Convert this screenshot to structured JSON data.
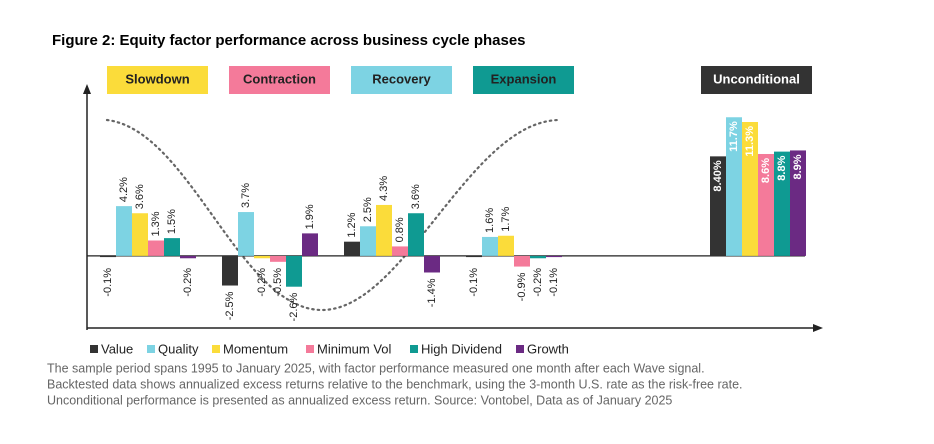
{
  "chart_data": {
    "type": "bar",
    "title": "Figure 2: Equity factor performance across business cycle phases",
    "categories": [
      "Slowdown",
      "Contraction",
      "Recovery",
      "Expansion",
      "Unconditional"
    ],
    "category_colors": [
      "#fbdc3a",
      "#f47a9a",
      "#7dd3e3",
      "#0f9a92",
      "#333333"
    ],
    "series": [
      {
        "name": "Value",
        "color": "#333333",
        "values": [
          -0.1,
          -2.5,
          1.2,
          -0.1,
          8.4
        ],
        "value_labels": [
          "-0.1%",
          "-2.5%",
          "1.2%",
          "-0.1%",
          "8.40%"
        ]
      },
      {
        "name": "Quality",
        "color": "#7dd3e3",
        "values": [
          4.2,
          3.7,
          2.5,
          1.6,
          11.7
        ],
        "value_labels": [
          "4.2%",
          "3.7%",
          "2.5%",
          "1.6%",
          "11.7%"
        ]
      },
      {
        "name": "Momentum",
        "color": "#fbdc3a",
        "values": [
          3.6,
          -0.2,
          4.3,
          1.7,
          11.3
        ],
        "value_labels": [
          "3.6%",
          "-0.2%",
          "4.3%",
          "1.7%",
          "11.3%"
        ]
      },
      {
        "name": "Minimum Vol",
        "color": "#f47a9a",
        "values": [
          1.3,
          -0.5,
          0.8,
          -0.9,
          8.6
        ],
        "value_labels": [
          "1.3%",
          "-0.5%",
          "0.8%",
          "-0.9%",
          "8.6%"
        ]
      },
      {
        "name": "High Dividend",
        "color": "#0f9a92",
        "values": [
          1.5,
          -2.6,
          3.6,
          -0.2,
          8.8
        ],
        "value_labels": [
          "1.5%",
          "-2.6%",
          "3.6%",
          "-0.2%",
          "8.8%"
        ]
      },
      {
        "name": "Growth",
        "color": "#6b2a83",
        "values": [
          -0.2,
          1.9,
          -1.4,
          -0.1,
          8.9
        ],
        "value_labels": [
          "-0.2%",
          "1.9%",
          "-1.4%",
          "-0.1%",
          "8.9%"
        ]
      }
    ],
    "ylim": [
      -6,
      14
    ],
    "footnote": [
      "The sample period spans 1995 to January 2025, with factor performance measured one month after each Wave signal.",
      "Backtested data shows annualized excess returns relative to the benchmark, using the 3-month U.S. rate as the risk-free rate.",
      "Unconditional performance is presented as annualized excess return. Source: Vontobel, Data as of January 2025"
    ]
  }
}
